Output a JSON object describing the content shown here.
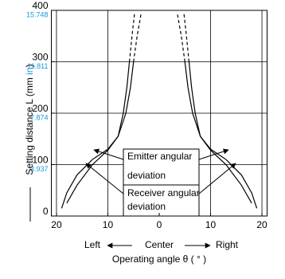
{
  "chart_data": {
    "type": "line",
    "ylabel": [
      "Setting distance L (mm ",
      "in",
      ")"
    ],
    "xlabel": "Operating angle θ ( ° )",
    "x_direction_labels": [
      "Left",
      "Center",
      "Right"
    ],
    "xlim": [
      -21,
      21
    ],
    "xticks": [
      {
        "value": -20,
        "label": "20"
      },
      {
        "value": -10,
        "label": "10"
      },
      0,
      10,
      20
    ],
    "ylim": [
      0,
      400
    ],
    "yticks": [
      0,
      100,
      200,
      300,
      400
    ],
    "y2lim": [
      0,
      15.748
    ],
    "y2ticks": [
      3.937,
      7.874,
      11.811,
      15.748
    ],
    "y2color": "#1a9ad6",
    "grid": true,
    "annotations": [
      [
        "Emitter angular",
        "deviation"
      ],
      [
        "Receiver angular",
        "deviation"
      ]
    ],
    "series": [
      {
        "color": "#000000",
        "line_style": "solid",
        "x": [
          18,
          16,
          13,
          10,
          8,
          6.5,
          5.6,
          5.0
        ],
        "values": [
          25,
          60,
          100,
          128,
          155,
          200,
          250,
          300
        ]
      },
      {
        "color": "#000000",
        "line_style": "dashed",
        "x": [
          5.0,
          4.3,
          3.5
        ],
        "values": [
          300,
          350,
          395
        ]
      },
      {
        "color": "#000000",
        "line_style": "solid",
        "x": [
          19,
          18,
          16,
          13,
          10,
          8,
          7,
          6.3,
          5.8
        ],
        "values": [
          15,
          45,
          80,
          110,
          130,
          155,
          200,
          250,
          300
        ]
      },
      {
        "color": "#000000",
        "line_style": "dashed",
        "x": [
          5.8,
          5.3,
          4.8
        ],
        "values": [
          300,
          350,
          395
        ]
      },
      {
        "color": "#000000",
        "line_style": "solid",
        "x": [
          -18,
          -16,
          -13,
          -10,
          -8,
          -6.5,
          -5.6,
          -5.0
        ],
        "values": [
          25,
          60,
          100,
          128,
          155,
          200,
          250,
          300
        ]
      },
      {
        "color": "#000000",
        "line_style": "dashed",
        "x": [
          -5.0,
          -4.3,
          -3.5
        ],
        "values": [
          300,
          350,
          395
        ]
      },
      {
        "color": "#000000",
        "line_style": "solid",
        "x": [
          -19,
          -18,
          -16,
          -13,
          -10,
          -8,
          -7,
          -6.3,
          -5.8
        ],
        "values": [
          15,
          45,
          80,
          110,
          130,
          155,
          200,
          250,
          300
        ]
      },
      {
        "color": "#000000",
        "line_style": "dashed",
        "x": [
          -5.8,
          -5.3,
          -4.8
        ],
        "values": [
          300,
          350,
          395
        ]
      }
    ]
  }
}
